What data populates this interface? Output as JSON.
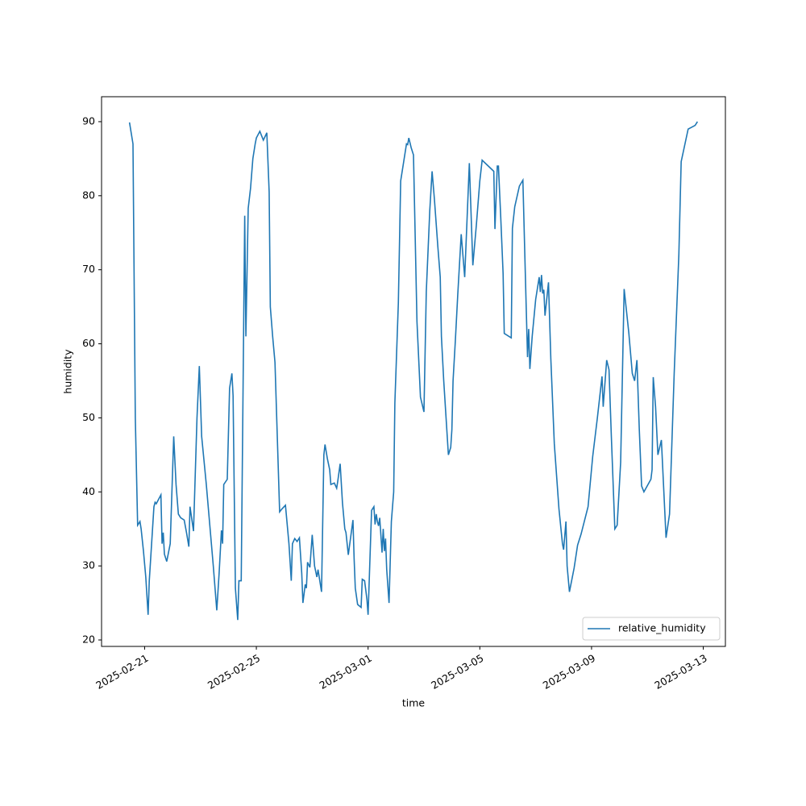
{
  "chart_data": {
    "type": "line",
    "xlabel": "time",
    "ylabel": "humidity",
    "legend": "lower right",
    "xscale": "time",
    "x": [
      "2025-02-20T11:00",
      "2025-02-20T14:00",
      "2025-02-20T16:00",
      "2025-02-20T18:00",
      "2025-02-20T20:00",
      "2025-02-20T21:00",
      "2025-02-20T23:00",
      "2025-02-21T01:00",
      "2025-02-21T03:00",
      "2025-02-21T04:00",
      "2025-02-21T08:00",
      "2025-02-21T09:00",
      "2025-02-21T10:00",
      "2025-02-21T12:00",
      "2025-02-21T14:00",
      "2025-02-21T15:00",
      "2025-02-21T16:00",
      "2025-02-21T17:00",
      "2025-02-21T19:00",
      "2025-02-21T22:00",
      "2025-02-22T01:00",
      "2025-02-22T03:00",
      "2025-02-22T05:00",
      "2025-02-22T07:00",
      "2025-02-22T10:00",
      "2025-02-22T12:00",
      "2025-02-22T14:00",
      "2025-02-22T15:00",
      "2025-02-22T18:00",
      "2025-02-22T21:00",
      "2025-02-22T23:00",
      "2025-02-23T01:00",
      "2025-02-23T05:00",
      "2025-02-23T11:00",
      "2025-02-23T14:00",
      "2025-02-23T16:00",
      "2025-02-23T18:00",
      "2025-02-23T19:00",
      "2025-02-23T20:00",
      "2025-02-23T23:00",
      "2025-02-24T01:00",
      "2025-02-24T03:00",
      "2025-02-24T04:00",
      "2025-02-24T06:00",
      "2025-02-24T08:00",
      "2025-02-24T09:00",
      "2025-02-24T11:00",
      "2025-02-24T14:00",
      "2025-02-24T15:00",
      "2025-02-24T17:00",
      "2025-02-24T19:00",
      "2025-02-24T21:00",
      "2025-02-24T23:00",
      "2025-02-25T00:00",
      "2025-02-25T03:00",
      "2025-02-25T06:00",
      "2025-02-25T09:00",
      "2025-02-25T11:00",
      "2025-02-25T12:00",
      "2025-02-25T14:00",
      "2025-02-25T16:00",
      "2025-02-25T20:00",
      "2025-02-25T22:00",
      "2025-02-26T01:00",
      "2025-02-26T04:00",
      "2025-02-26T06:00",
      "2025-02-26T07:00",
      "2025-02-26T09:00",
      "2025-02-26T11:00",
      "2025-02-26T13:00",
      "2025-02-26T15:00",
      "2025-02-26T16:00",
      "2025-02-26T18:00",
      "2025-02-26T19:00",
      "2025-02-26T20:00",
      "2025-02-26T22:00",
      "2025-02-27T00:00",
      "2025-02-27T02:00",
      "2025-02-27T04:00",
      "2025-02-27T05:00",
      "2025-02-27T08:00",
      "2025-02-27T10:00",
      "2025-02-27T11:00",
      "2025-02-27T13:00",
      "2025-02-27T15:00",
      "2025-02-27T16:00",
      "2025-02-27T19:00",
      "2025-02-27T21:00",
      "2025-02-27T22:00",
      "2025-02-28T00:00",
      "2025-02-28T02:00",
      "2025-02-28T04:00",
      "2025-02-28T05:00",
      "2025-02-28T07:00",
      "2025-02-28T11:00",
      "2025-02-28T12:00",
      "2025-02-28T13:00",
      "2025-02-28T15:00",
      "2025-02-28T18:00",
      "2025-02-28T19:00",
      "2025-02-28T21:00",
      "2025-02-28T23:00",
      "2025-03-01T00:00",
      "2025-03-01T03:00",
      "2025-03-01T05:00",
      "2025-03-01T06:00",
      "2025-03-01T07:00",
      "2025-03-01T08:00",
      "2025-03-01T09:00",
      "2025-03-01T10:00",
      "2025-03-01T12:00",
      "2025-03-01T13:00",
      "2025-03-01T14:00",
      "2025-03-01T15:00",
      "2025-03-01T16:00",
      "2025-03-01T18:00",
      "2025-03-01T20:00",
      "2025-03-01T22:00",
      "2025-03-01T23:00",
      "2025-03-02T02:00",
      "2025-03-02T04:00",
      "2025-03-02T07:00",
      "2025-03-02T09:00",
      "2025-03-02T10:00",
      "2025-03-02T11:00",
      "2025-03-02T13:00",
      "2025-03-02T15:00",
      "2025-03-02T18:00",
      "2025-03-02T21:00",
      "2025-03-03T00:00",
      "2025-03-03T02:00",
      "2025-03-03T05:00",
      "2025-03-03T07:00",
      "2025-03-03T09:00",
      "2025-03-03T12:00",
      "2025-03-03T14:00",
      "2025-03-03T15:00",
      "2025-03-03T17:00",
      "2025-03-03T19:00",
      "2025-03-03T21:00",
      "2025-03-03T23:00",
      "2025-03-04T00:00",
      "2025-03-04T01:00",
      "2025-03-04T03:00",
      "2025-03-04T05:00",
      "2025-03-04T08:00",
      "2025-03-04T11:00",
      "2025-03-04T15:00",
      "2025-03-04T18:00",
      "2025-03-04T21:00",
      "2025-03-05T00:00",
      "2025-03-05T02:00",
      "2025-03-05T06:00",
      "2025-03-05T12:00",
      "2025-03-05T13:00",
      "2025-03-05T15:00",
      "2025-03-05T16:00",
      "2025-03-05T18:00",
      "2025-03-05T20:00",
      "2025-03-05T21:00",
      "2025-03-06T03:00",
      "2025-03-06T04:00",
      "2025-03-06T06:00",
      "2025-03-06T10:00",
      "2025-03-06T13:00",
      "2025-03-06T15:00",
      "2025-03-06T17:00",
      "2025-03-06T18:00",
      "2025-03-06T19:00",
      "2025-03-06T21:00",
      "2025-03-07T00:00",
      "2025-03-07T03:00",
      "2025-03-07T04:00",
      "2025-03-07T05:00",
      "2025-03-07T06:00",
      "2025-03-07T07:00",
      "2025-03-07T08:00",
      "2025-03-07T11:00",
      "2025-03-07T13:00",
      "2025-03-07T16:00",
      "2025-03-07T20:00",
      "2025-03-07T23:00",
      "2025-03-08T00:00",
      "2025-03-08T02:00",
      "2025-03-08T03:00",
      "2025-03-08T05:00",
      "2025-03-08T09:00",
      "2025-03-08T12:00",
      "2025-03-08T15:00",
      "2025-03-08T21:00",
      "2025-03-09T01:00",
      "2025-03-09T05:00",
      "2025-03-09T09:00",
      "2025-03-09T10:00",
      "2025-03-09T13:00",
      "2025-03-09T15:00",
      "2025-03-09T17:00",
      "2025-03-09T20:00",
      "2025-03-09T22:00",
      "2025-03-10T01:00",
      "2025-03-10T04:00",
      "2025-03-10T08:00",
      "2025-03-10T11:00",
      "2025-03-10T13:00",
      "2025-03-10T15:00",
      "2025-03-10T17:00",
      "2025-03-10T19:00",
      "2025-03-10T21:00",
      "2025-03-11T03:00",
      "2025-03-11T04:00",
      "2025-03-11T05:00",
      "2025-03-11T07:00",
      "2025-03-11T09:00",
      "2025-03-11T12:00",
      "2025-03-11T16:00",
      "2025-03-11T19:00",
      "2025-03-11T23:00",
      "2025-03-12T03:00",
      "2025-03-12T05:00",
      "2025-03-12T11:00",
      "2025-03-12T17:00",
      "2025-03-12T19:00"
    ],
    "series": [
      {
        "name": "relative_humidity",
        "color": "#1f77b4",
        "values": [
          89.9,
          87,
          50,
          35.5,
          36,
          35,
          32,
          28.5,
          23.4,
          28,
          38,
          38.6,
          38.4,
          39,
          39.6,
          33,
          34.5,
          31.6,
          30.6,
          33,
          47.5,
          41,
          37,
          36.5,
          36.2,
          34.5,
          32.6,
          38,
          34.7,
          50,
          57,
          47.5,
          41,
          30,
          24,
          29,
          34.8,
          33,
          41,
          41.7,
          54,
          56,
          53,
          27,
          22.7,
          28,
          28,
          77.3,
          61,
          78.3,
          81,
          85,
          87,
          87.8,
          88.7,
          87.5,
          88.5,
          80.5,
          65,
          61,
          57.5,
          37.3,
          37.7,
          38.2,
          33,
          28,
          33,
          33.7,
          33.3,
          33.8,
          29,
          25,
          27.5,
          27,
          30.5,
          29.8,
          34.2,
          30,
          28.5,
          29.5,
          26.5,
          45,
          46.4,
          44.5,
          43,
          41,
          41.2,
          40.5,
          41.5,
          43.8,
          38.5,
          35,
          34.5,
          31.5,
          36.2,
          31,
          27,
          24.8,
          24.4,
          28.2,
          28,
          25.5,
          23.4,
          37.5,
          38,
          35.6,
          37,
          36,
          35.4,
          36.5,
          31.8,
          35,
          32,
          33.7,
          29.5,
          25,
          36,
          40,
          52,
          65.5,
          82,
          85,
          87,
          86.9,
          87.8,
          86.5,
          85.5,
          63,
          52.8,
          50.8,
          67,
          78,
          83.3,
          79.5,
          73,
          69,
          61,
          55,
          50,
          45,
          46,
          48.4,
          55,
          60.5,
          66.5,
          74.8,
          69,
          84.4,
          70.6,
          76,
          82,
          84.8,
          84.2,
          83.3,
          75.5,
          84,
          84,
          77,
          69.5,
          61.4,
          60.8,
          75.6,
          78.5,
          81.3,
          82.1,
          70,
          58.2,
          62,
          56.6,
          61,
          66,
          69,
          67,
          69.3,
          66.8,
          67.3,
          63.8,
          68.3,
          58,
          46.5,
          37.7,
          33,
          32.2,
          36,
          30,
          26.5,
          29.7,
          32.8,
          34.3,
          38,
          44.8,
          50,
          55.6,
          51.5,
          57.8,
          56.5,
          47.5,
          35,
          35.5,
          44,
          67.4,
          61.5,
          56,
          55,
          57.8,
          48.5,
          40.8,
          40,
          41.7,
          43,
          55.5,
          51.5,
          45,
          47,
          33.8,
          37,
          56,
          72,
          84.6,
          89,
          89.5,
          90
        ]
      }
    ],
    "xlim": [
      "2025-02-19T11:00",
      "2025-03-13T19:00"
    ],
    "xticks": [
      "2025-02-21",
      "2025-02-25",
      "2025-03-01",
      "2025-03-05",
      "2025-03-09",
      "2025-03-13"
    ],
    "ylim": [
      19.13,
      93.37
    ],
    "yticks": [
      20,
      30,
      40,
      50,
      60,
      70,
      80,
      90
    ]
  }
}
